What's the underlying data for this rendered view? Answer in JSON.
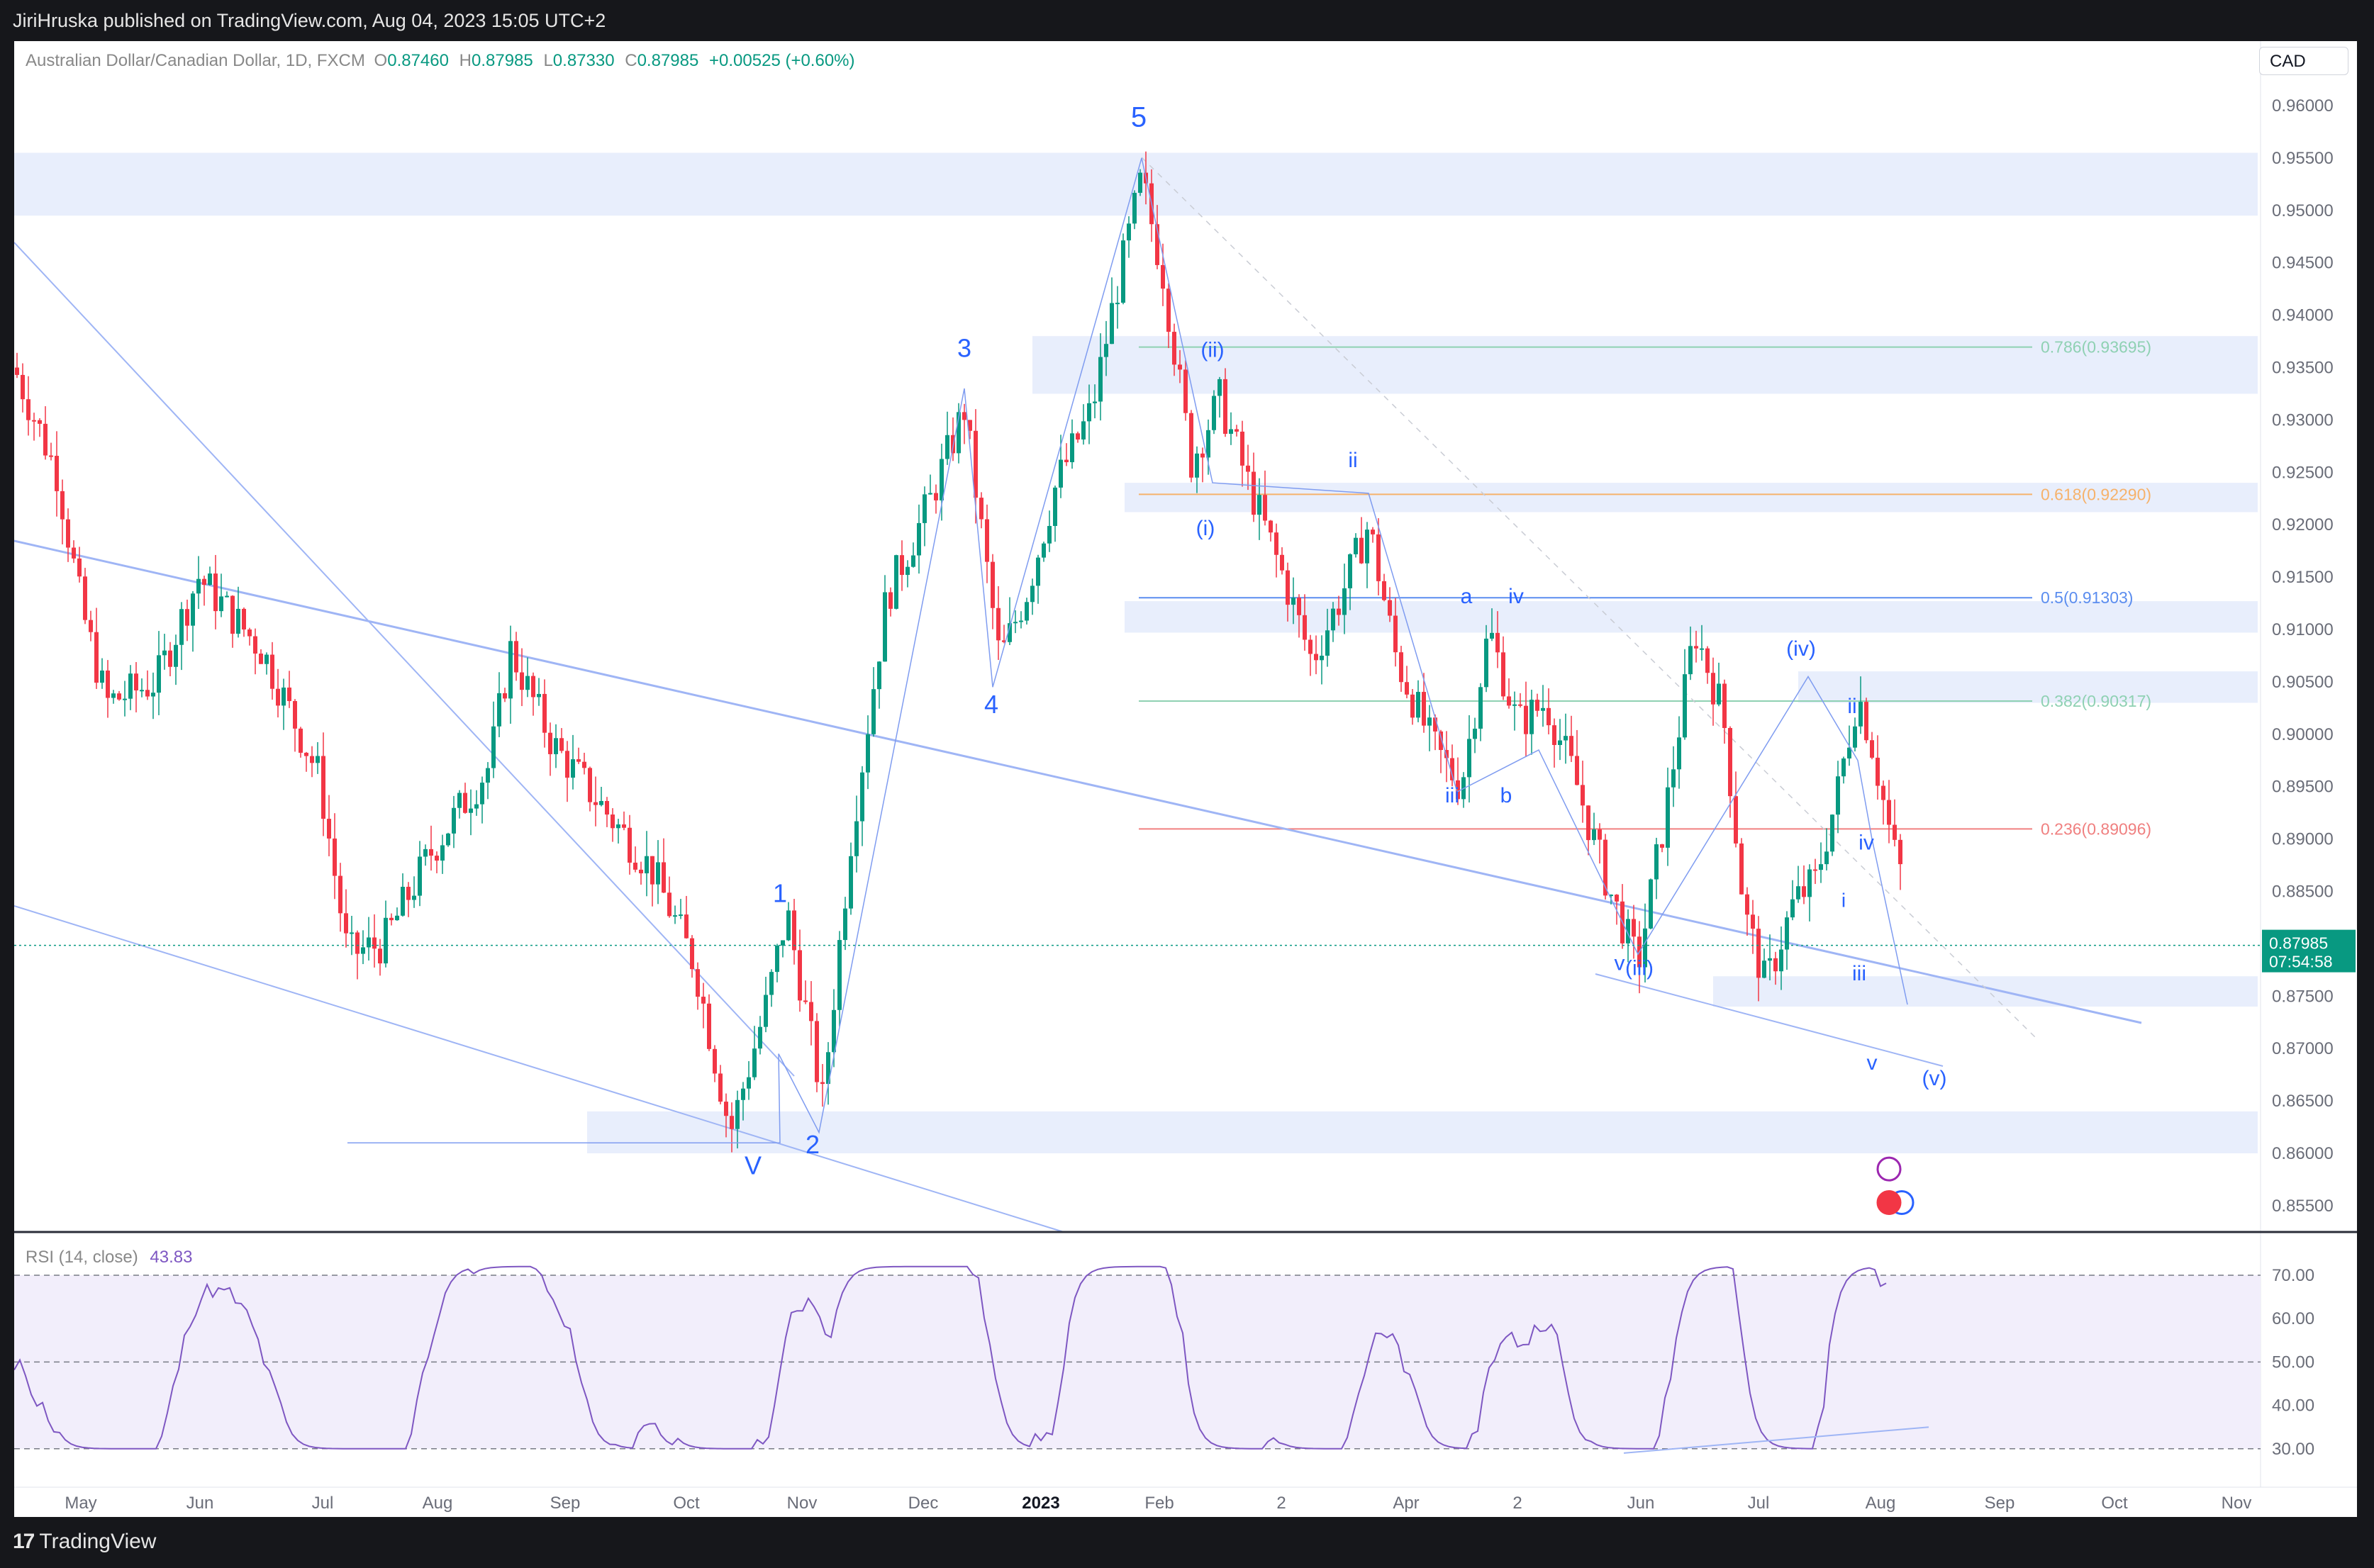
{
  "header": {
    "publisher": "JiriHruska published on TradingView.com, Aug 04, 2023 15:05 UTC+2"
  },
  "legend": {
    "symbol": "Australian Dollar/Canadian Dollar, 1D, FXCM",
    "o_label": "O",
    "o": "0.87460",
    "h_label": "H",
    "h": "0.87985",
    "l_label": "L",
    "l": "0.87330",
    "c_label": "C",
    "c": "0.87985",
    "change": "+0.00525 (+0.60%)"
  },
  "currency_button": "CAD",
  "price_axis": [
    "0.96000",
    "0.95500",
    "0.95000",
    "0.94500",
    "0.94000",
    "0.93500",
    "0.93000",
    "0.92500",
    "0.92000",
    "0.91500",
    "0.91000",
    "0.90500",
    "0.90000",
    "0.89500",
    "0.89000",
    "0.88500",
    "0.88000",
    "0.87500",
    "0.87000",
    "0.86500",
    "0.86000",
    "0.85500"
  ],
  "last_price": {
    "value": "0.87985",
    "countdown": "07:54:58"
  },
  "fib_levels": [
    {
      "ratio": "0.786",
      "value": "0.93695",
      "label": "0.786(0.93695)",
      "color": "#8fd1b3"
    },
    {
      "ratio": "0.618",
      "value": "0.92290",
      "label": "0.618(0.92290)",
      "color": "#f6b26b"
    },
    {
      "ratio": "0.5",
      "value": "0.91303",
      "label": "0.5(0.91303)",
      "color": "#5b8def"
    },
    {
      "ratio": "0.382",
      "value": "0.90317",
      "label": "0.382(0.90317)",
      "color": "#8fd1b3"
    },
    {
      "ratio": "0.236",
      "value": "0.89096",
      "label": "0.236(0.89096)",
      "color": "#f08080"
    }
  ],
  "wave_labels": [
    "5",
    "3",
    "4",
    "1",
    "2",
    "V",
    "(ii)",
    "(i)",
    "ii",
    "a",
    "iv",
    "iii",
    "b",
    "v",
    "(iii)",
    "(iv)",
    "ii",
    "iv",
    "i",
    "iii",
    "v",
    "(v)"
  ],
  "rsi": {
    "title": "RSI (14, close)",
    "value": "43.83",
    "axis": [
      "70.00",
      "60.00",
      "50.00",
      "40.00",
      "30.00"
    ]
  },
  "time_axis": [
    "May",
    "Jun",
    "Jul",
    "Aug",
    "Sep",
    "Oct",
    "Nov",
    "Dec",
    "2023",
    "Feb",
    "2",
    "Apr",
    "2",
    "Jun",
    "Jul",
    "Aug",
    "Sep",
    "Oct",
    "Nov"
  ],
  "footer": {
    "brand": "TradingView"
  },
  "colors": {
    "up": "#089981",
    "down": "#f23645",
    "wave": "#2962ff",
    "rsi": "#7e57c2",
    "zone": "#e8eefc",
    "rsi_band": "#f2eefb"
  }
}
